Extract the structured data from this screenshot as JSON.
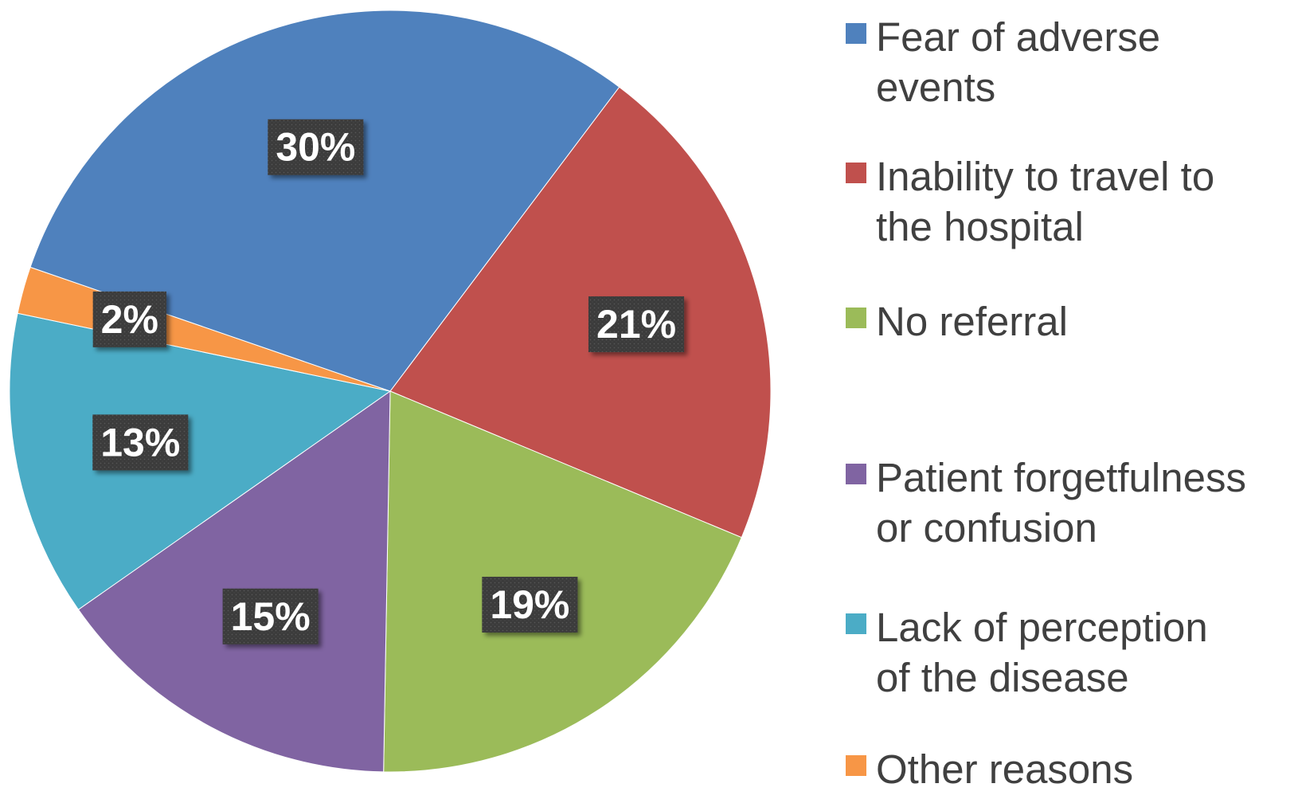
{
  "chart_data": {
    "type": "pie",
    "title": "",
    "start_angle_deg": -53,
    "direction": "clockwise",
    "legend_position": "right",
    "slices": [
      {
        "label": "Inability to travel to the hospital",
        "value": 21,
        "display": "21%",
        "color": "#c0504d"
      },
      {
        "label": "No referral",
        "value": 19,
        "display": "19%",
        "color": "#9bbb59"
      },
      {
        "label": "Patient forgetfulness or confusion",
        "value": 15,
        "display": "15%",
        "color": "#8064a2"
      },
      {
        "label": "Lack of perception of the disease",
        "value": 13,
        "display": "13%",
        "color": "#4bacc6"
      },
      {
        "label": "Other reasons",
        "value": 2,
        "display": "2%",
        "color": "#f79646"
      },
      {
        "label": "Fear of adverse events",
        "value": 30,
        "display": "30%",
        "color": "#4f81bd"
      }
    ],
    "legend": [
      {
        "text": "Fear of adverse\nevents",
        "color": "#4f81bd"
      },
      {
        "text": "Inability to travel to\nthe hospital",
        "color": "#c0504d"
      },
      {
        "text": "No referral",
        "color": "#9bbb59"
      },
      {
        "text": "Patient forgetfulness\nor confusion",
        "color": "#8064a2"
      },
      {
        "text": "Lack of perception\nof the disease",
        "color": "#4bacc6"
      },
      {
        "text": "Other reasons",
        "color": "#f79646"
      }
    ],
    "label_box_color": "#404040"
  }
}
